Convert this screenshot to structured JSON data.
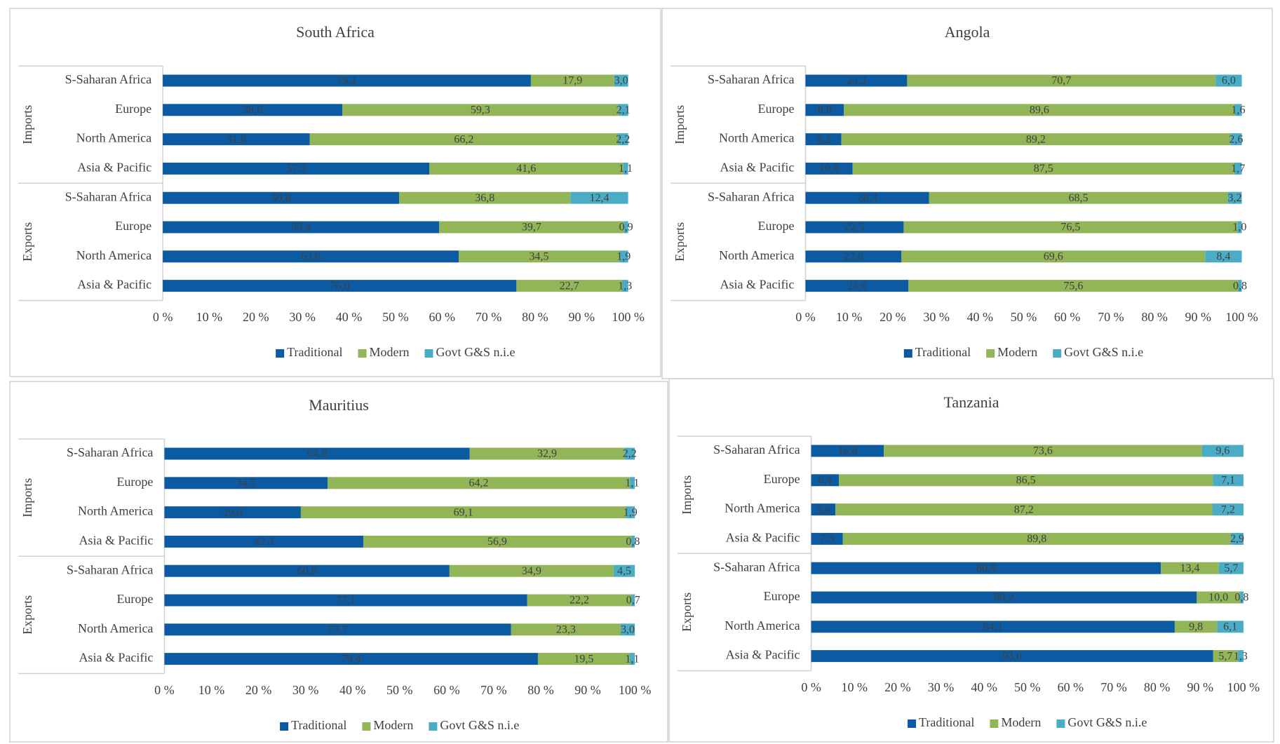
{
  "chart_data": [
    {
      "type": "bar",
      "orientation": "horizontal",
      "stacked": true,
      "title": "South Africa",
      "groups": [
        "Imports",
        "Exports"
      ],
      "categories": [
        "S-Saharan Africa",
        "Europe",
        "North America",
        "Asia & Pacific",
        "S-Saharan Africa",
        "Europe",
        "North America",
        "Asia & Pacific"
      ],
      "series": [
        {
          "name": "Traditional",
          "color": "#0b5aa2",
          "values": [
            79.1,
            38.6,
            31.6,
            57.3,
            50.8,
            59.4,
            63.6,
            76.0
          ],
          "value_labels": [
            "79,1",
            "38,6",
            "31,6",
            "57,3",
            "50,8",
            "59,4",
            "63,6",
            "76,0"
          ]
        },
        {
          "name": "Modern",
          "color": "#92b558",
          "values": [
            17.9,
            59.3,
            66.2,
            41.6,
            36.8,
            39.7,
            34.5,
            22.7
          ],
          "value_labels": [
            "17,9",
            "59,3",
            "66,2",
            "41,6",
            "36,8",
            "39,7",
            "34,5",
            "22,7"
          ]
        },
        {
          "name": "Govt G&S n.i.e",
          "color": "#4bacc6",
          "values": [
            3.0,
            2.1,
            2.2,
            1.1,
            12.4,
            0.9,
            1.9,
            1.3
          ],
          "value_labels": [
            "3,0",
            "2,1",
            "2,2",
            "1,1",
            "12,4",
            "0,9",
            "1,9",
            "1,3"
          ]
        }
      ],
      "xlim": [
        0,
        100
      ],
      "xticks": [
        {
          "value": 0,
          "label": "0 %"
        },
        {
          "value": 10,
          "label": "10 %"
        },
        {
          "value": 20,
          "label": "20 %"
        },
        {
          "value": 30,
          "label": "30 %"
        },
        {
          "value": 40,
          "label": "40 %"
        },
        {
          "value": 50,
          "label": "50 %"
        },
        {
          "value": 60,
          "label": "60 %"
        },
        {
          "value": 70,
          "label": "70 %"
        },
        {
          "value": 80,
          "label": "80 %"
        },
        {
          "value": 90,
          "label": "90 %"
        },
        {
          "value": 100,
          "label": "100 %"
        }
      ],
      "legend": "bottom"
    },
    {
      "type": "bar",
      "orientation": "horizontal",
      "stacked": true,
      "title": "Angola",
      "groups": [
        "Imports",
        "Exports"
      ],
      "categories": [
        "S-Saharan Africa",
        "Europe",
        "North America",
        "Asia & Pacific",
        "S-Saharan Africa",
        "Europe",
        "North America",
        "Asia & Pacific"
      ],
      "series": [
        {
          "name": "Traditional",
          "color": "#0b5aa2",
          "values": [
            23.3,
            8.8,
            8.2,
            10.8,
            28.3,
            22.5,
            22.0,
            23.6
          ],
          "value_labels": [
            "23,3",
            "8,8",
            "8,2",
            "10,8",
            "28,3",
            "22,5",
            "22,0",
            "23,6"
          ]
        },
        {
          "name": "Modern",
          "color": "#92b558",
          "values": [
            70.7,
            89.6,
            89.2,
            87.5,
            68.5,
            76.5,
            69.6,
            75.6
          ],
          "value_labels": [
            "70,7",
            "89,6",
            "89,2",
            "87,5",
            "68,5",
            "76,5",
            "69,6",
            "75,6"
          ]
        },
        {
          "name": "Govt G&S n.i.e",
          "color": "#4bacc6",
          "values": [
            6.0,
            1.6,
            2.6,
            1.7,
            3.2,
            1.0,
            8.4,
            0.8
          ],
          "value_labels": [
            "6,0",
            "1,6",
            "2,6",
            "1,7",
            "3,2",
            "1,0",
            "8,4",
            "0,8"
          ]
        }
      ],
      "xlim": [
        0,
        100
      ],
      "xticks": [
        {
          "value": 0,
          "label": "0 %"
        },
        {
          "value": 10,
          "label": "10 %"
        },
        {
          "value": 20,
          "label": "20 %"
        },
        {
          "value": 30,
          "label": "30 %"
        },
        {
          "value": 40,
          "label": "40 %"
        },
        {
          "value": 50,
          "label": "50 %"
        },
        {
          "value": 60,
          "label": "60 %"
        },
        {
          "value": 70,
          "label": "70 %"
        },
        {
          "value": 80,
          "label": "80 %"
        },
        {
          "value": 90,
          "label": "90 %"
        },
        {
          "value": 100,
          "label": "100 %"
        }
      ],
      "legend": "bottom"
    },
    {
      "type": "bar",
      "orientation": "horizontal",
      "stacked": true,
      "title": "Mauritius",
      "groups": [
        "Imports",
        "Exports"
      ],
      "categories": [
        "S-Saharan Africa",
        "Europe",
        "North America",
        "Asia & Pacific",
        "S-Saharan Africa",
        "Europe",
        "North America",
        "Asia & Pacific"
      ],
      "series": [
        {
          "name": "Traditional",
          "color": "#0b5aa2",
          "values": [
            64.9,
            34.7,
            29.0,
            42.3,
            60.6,
            77.1,
            73.7,
            79.4
          ],
          "value_labels": [
            "64,9",
            "34,7",
            "29,0",
            "42,3",
            "60,6",
            "77,1",
            "73,7",
            "79,4"
          ]
        },
        {
          "name": "Modern",
          "color": "#92b558",
          "values": [
            32.9,
            64.2,
            69.1,
            56.9,
            34.9,
            22.2,
            23.3,
            19.5
          ],
          "value_labels": [
            "32,9",
            "64,2",
            "69,1",
            "56,9",
            "34,9",
            "22,2",
            "23,3",
            "19,5"
          ]
        },
        {
          "name": "Govt G&S n.i.e",
          "color": "#4bacc6",
          "values": [
            2.2,
            1.1,
            1.9,
            0.8,
            4.5,
            0.7,
            3.0,
            1.1
          ],
          "value_labels": [
            "2,2",
            "1,1",
            "1,9",
            "0,8",
            "4,5",
            "0,7",
            "3,0",
            "1,1"
          ]
        }
      ],
      "xlim": [
        0,
        100
      ],
      "xticks": [
        {
          "value": 0,
          "label": "0 %"
        },
        {
          "value": 10,
          "label": "10 %"
        },
        {
          "value": 20,
          "label": "20 %"
        },
        {
          "value": 30,
          "label": "30 %"
        },
        {
          "value": 40,
          "label": "40 %"
        },
        {
          "value": 50,
          "label": "50 %"
        },
        {
          "value": 60,
          "label": "60 %"
        },
        {
          "value": 70,
          "label": "70 %"
        },
        {
          "value": 80,
          "label": "80 %"
        },
        {
          "value": 90,
          "label": "90 %"
        },
        {
          "value": 100,
          "label": "100 %"
        }
      ],
      "legend": "bottom"
    },
    {
      "type": "bar",
      "orientation": "horizontal",
      "stacked": true,
      "title": "Tanzania",
      "groups": [
        "Imports",
        "Exports"
      ],
      "categories": [
        "S-Saharan Africa",
        "Europe",
        "North America",
        "Asia & Pacific",
        "S-Saharan Africa",
        "Europe",
        "North America",
        "Asia & Pacific"
      ],
      "series": [
        {
          "name": "Traditional",
          "color": "#0b5aa2",
          "values": [
            16.8,
            6.4,
            5.6,
            7.3,
            80.9,
            89.2,
            84.1,
            93.0
          ],
          "value_labels": [
            "16,8",
            "6,4",
            "5,6",
            "7,3",
            "80,9",
            "89,2",
            "84,1",
            "93,0"
          ]
        },
        {
          "name": "Modern",
          "color": "#92b558",
          "values": [
            73.6,
            86.5,
            87.2,
            89.8,
            13.4,
            10.0,
            9.8,
            5.7
          ],
          "value_labels": [
            "73,6",
            "86,5",
            "87,2",
            "89,8",
            "13,4",
            "10,0",
            "9,8",
            "5,7"
          ]
        },
        {
          "name": "Govt G&S n.i.e",
          "color": "#4bacc6",
          "values": [
            9.6,
            7.1,
            7.2,
            2.9,
            5.7,
            0.8,
            6.1,
            1.3
          ],
          "value_labels": [
            "9,6",
            "7,1",
            "7,2",
            "2,9",
            "5,7",
            "0,8",
            "6,1",
            "1,3"
          ]
        }
      ],
      "xlim": [
        0,
        100
      ],
      "xticks": [
        {
          "value": 0,
          "label": "0 %"
        },
        {
          "value": 10,
          "label": "10 %"
        },
        {
          "value": 20,
          "label": "20 %"
        },
        {
          "value": 30,
          "label": "30 %"
        },
        {
          "value": 40,
          "label": "40 %"
        },
        {
          "value": 50,
          "label": "50 %"
        },
        {
          "value": 60,
          "label": "60 %"
        },
        {
          "value": 70,
          "label": "70 %"
        },
        {
          "value": 80,
          "label": "80 %"
        },
        {
          "value": 90,
          "label": "90 %"
        },
        {
          "value": 100,
          "label": "100 %"
        }
      ],
      "legend": "bottom"
    }
  ]
}
